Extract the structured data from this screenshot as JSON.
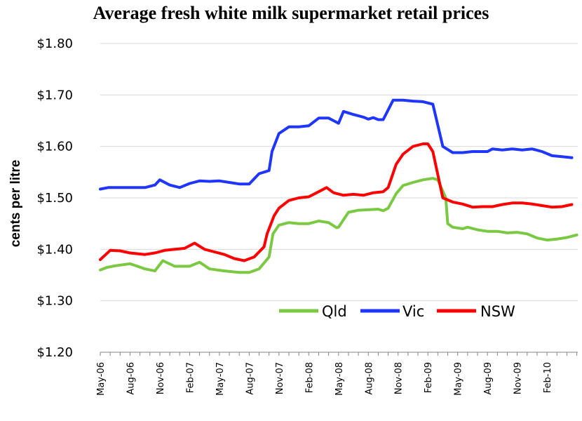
{
  "chart_data": {
    "type": "line",
    "title": "Average fresh white milk supermarket retail prices",
    "ylabel": "cents per litre",
    "xlabel": "",
    "ylim": [
      1.2,
      1.8
    ],
    "yticks": [
      "$1.20",
      "$1.30",
      "$1.40",
      "$1.50",
      "$1.60",
      "$1.70",
      "$1.80"
    ],
    "ytick_values": [
      1.2,
      1.3,
      1.4,
      1.5,
      1.6,
      1.7,
      1.8
    ],
    "grid": true,
    "legend_position": "bottom-right-inside",
    "months_start": "May-06",
    "x_labels": [
      {
        "label": "May-06",
        "index": 0
      },
      {
        "label": "Aug-06",
        "index": 3
      },
      {
        "label": "Nov-06",
        "index": 6
      },
      {
        "label": "Feb-07",
        "index": 9
      },
      {
        "label": "May-07",
        "index": 12
      },
      {
        "label": "Aug-07",
        "index": 15
      },
      {
        "label": "Nov-07",
        "index": 18
      },
      {
        "label": "Feb-08",
        "index": 21
      },
      {
        "label": "May-08",
        "index": 24
      },
      {
        "label": "Aug-08",
        "index": 27
      },
      {
        "label": "Nov-08",
        "index": 30
      },
      {
        "label": "Feb-09",
        "index": 33
      },
      {
        "label": "May-09",
        "index": 36
      },
      {
        "label": "Aug-09",
        "index": 39
      },
      {
        "label": "Nov-09",
        "index": 42
      },
      {
        "label": "Feb-10",
        "index": 45
      }
    ],
    "x_count": 50,
    "series": [
      {
        "name": "Qld",
        "color": "#7ac943",
        "values": [
          [
            0,
            1.36
          ],
          [
            0.7,
            1.365
          ],
          [
            1.5,
            1.368
          ],
          [
            3,
            1.372
          ],
          [
            4.5,
            1.362
          ],
          [
            5.5,
            1.358
          ],
          [
            6.3,
            1.378
          ],
          [
            7.5,
            1.367
          ],
          [
            9,
            1.367
          ],
          [
            10,
            1.375
          ],
          [
            11,
            1.362
          ],
          [
            12.5,
            1.358
          ],
          [
            14,
            1.355
          ],
          [
            15,
            1.355
          ],
          [
            16,
            1.362
          ],
          [
            17,
            1.385
          ],
          [
            17.4,
            1.43
          ],
          [
            18,
            1.447
          ],
          [
            19,
            1.452
          ],
          [
            20,
            1.45
          ],
          [
            21,
            1.45
          ],
          [
            22,
            1.455
          ],
          [
            23,
            1.452
          ],
          [
            23.8,
            1.442
          ],
          [
            24,
            1.443
          ],
          [
            25,
            1.472
          ],
          [
            26,
            1.476
          ],
          [
            27,
            1.477
          ],
          [
            28,
            1.478
          ],
          [
            28.5,
            1.475
          ],
          [
            29,
            1.48
          ],
          [
            29.8,
            1.508
          ],
          [
            30.5,
            1.524
          ],
          [
            31.5,
            1.53
          ],
          [
            32.5,
            1.535
          ],
          [
            33.5,
            1.538
          ],
          [
            34,
            1.535
          ],
          [
            34.8,
            1.5
          ],
          [
            35,
            1.45
          ],
          [
            35.5,
            1.443
          ],
          [
            36.5,
            1.44
          ],
          [
            37,
            1.443
          ],
          [
            38,
            1.438
          ],
          [
            39,
            1.435
          ],
          [
            40,
            1.435
          ],
          [
            41,
            1.432
          ],
          [
            42,
            1.433
          ],
          [
            43,
            1.43
          ],
          [
            44,
            1.422
          ],
          [
            45,
            1.418
          ],
          [
            46,
            1.42
          ],
          [
            47,
            1.423
          ],
          [
            48,
            1.428
          ]
        ]
      },
      {
        "name": "Vic",
        "color": "#1e36ff",
        "values": [
          [
            0,
            1.517
          ],
          [
            0.8,
            1.52
          ],
          [
            2,
            1.52
          ],
          [
            3,
            1.52
          ],
          [
            4.5,
            1.52
          ],
          [
            5.5,
            1.525
          ],
          [
            6,
            1.535
          ],
          [
            7,
            1.525
          ],
          [
            8,
            1.52
          ],
          [
            9,
            1.528
          ],
          [
            10,
            1.533
          ],
          [
            11,
            1.532
          ],
          [
            12,
            1.533
          ],
          [
            13,
            1.53
          ],
          [
            14,
            1.527
          ],
          [
            15,
            1.527
          ],
          [
            16,
            1.547
          ],
          [
            17,
            1.553
          ],
          [
            17.3,
            1.59
          ],
          [
            18,
            1.625
          ],
          [
            19,
            1.638
          ],
          [
            20,
            1.638
          ],
          [
            21,
            1.64
          ],
          [
            22,
            1.655
          ],
          [
            23,
            1.655
          ],
          [
            23.5,
            1.65
          ],
          [
            24,
            1.645
          ],
          [
            24.5,
            1.668
          ],
          [
            25.5,
            1.662
          ],
          [
            26.5,
            1.657
          ],
          [
            27,
            1.653
          ],
          [
            27.5,
            1.656
          ],
          [
            28,
            1.652
          ],
          [
            28.5,
            1.652
          ],
          [
            29.5,
            1.69
          ],
          [
            30.5,
            1.69
          ],
          [
            31.5,
            1.688
          ],
          [
            32.5,
            1.687
          ],
          [
            33.5,
            1.682
          ],
          [
            34.5,
            1.6
          ],
          [
            35.5,
            1.588
          ],
          [
            36.5,
            1.588
          ],
          [
            37.5,
            1.59
          ],
          [
            38.5,
            1.59
          ],
          [
            39,
            1.59
          ],
          [
            39.5,
            1.595
          ],
          [
            40.5,
            1.593
          ],
          [
            41.5,
            1.595
          ],
          [
            42.5,
            1.593
          ],
          [
            43.5,
            1.595
          ],
          [
            44.5,
            1.59
          ],
          [
            45.5,
            1.582
          ],
          [
            46.5,
            1.58
          ],
          [
            47.5,
            1.578
          ]
        ]
      },
      {
        "name": "NSW",
        "color": "#ff0000",
        "values": [
          [
            0,
            1.38
          ],
          [
            1,
            1.398
          ],
          [
            2,
            1.397
          ],
          [
            3,
            1.393
          ],
          [
            4.5,
            1.39
          ],
          [
            5.5,
            1.393
          ],
          [
            6.5,
            1.398
          ],
          [
            7.5,
            1.4
          ],
          [
            8.5,
            1.402
          ],
          [
            9.5,
            1.412
          ],
          [
            10.5,
            1.4
          ],
          [
            11.5,
            1.395
          ],
          [
            12.5,
            1.39
          ],
          [
            13.5,
            1.382
          ],
          [
            14.5,
            1.378
          ],
          [
            15.5,
            1.385
          ],
          [
            16.5,
            1.405
          ],
          [
            16.8,
            1.43
          ],
          [
            17.5,
            1.465
          ],
          [
            18,
            1.48
          ],
          [
            19,
            1.495
          ],
          [
            20,
            1.5
          ],
          [
            21,
            1.502
          ],
          [
            22,
            1.512
          ],
          [
            22.8,
            1.52
          ],
          [
            23.5,
            1.51
          ],
          [
            24.5,
            1.505
          ],
          [
            25.5,
            1.507
          ],
          [
            26.5,
            1.505
          ],
          [
            27.5,
            1.51
          ],
          [
            28.5,
            1.512
          ],
          [
            29,
            1.52
          ],
          [
            29.8,
            1.565
          ],
          [
            30.5,
            1.585
          ],
          [
            31.5,
            1.6
          ],
          [
            32.5,
            1.605
          ],
          [
            33,
            1.605
          ],
          [
            33.5,
            1.59
          ],
          [
            34.5,
            1.5
          ],
          [
            35.5,
            1.492
          ],
          [
            36.5,
            1.488
          ],
          [
            37.5,
            1.482
          ],
          [
            38.5,
            1.483
          ],
          [
            39.5,
            1.483
          ],
          [
            40.5,
            1.487
          ],
          [
            41.5,
            1.49
          ],
          [
            42.5,
            1.49
          ],
          [
            43.5,
            1.488
          ],
          [
            44.5,
            1.485
          ],
          [
            45.5,
            1.482
          ],
          [
            46.5,
            1.483
          ],
          [
            47.5,
            1.487
          ]
        ]
      }
    ]
  }
}
